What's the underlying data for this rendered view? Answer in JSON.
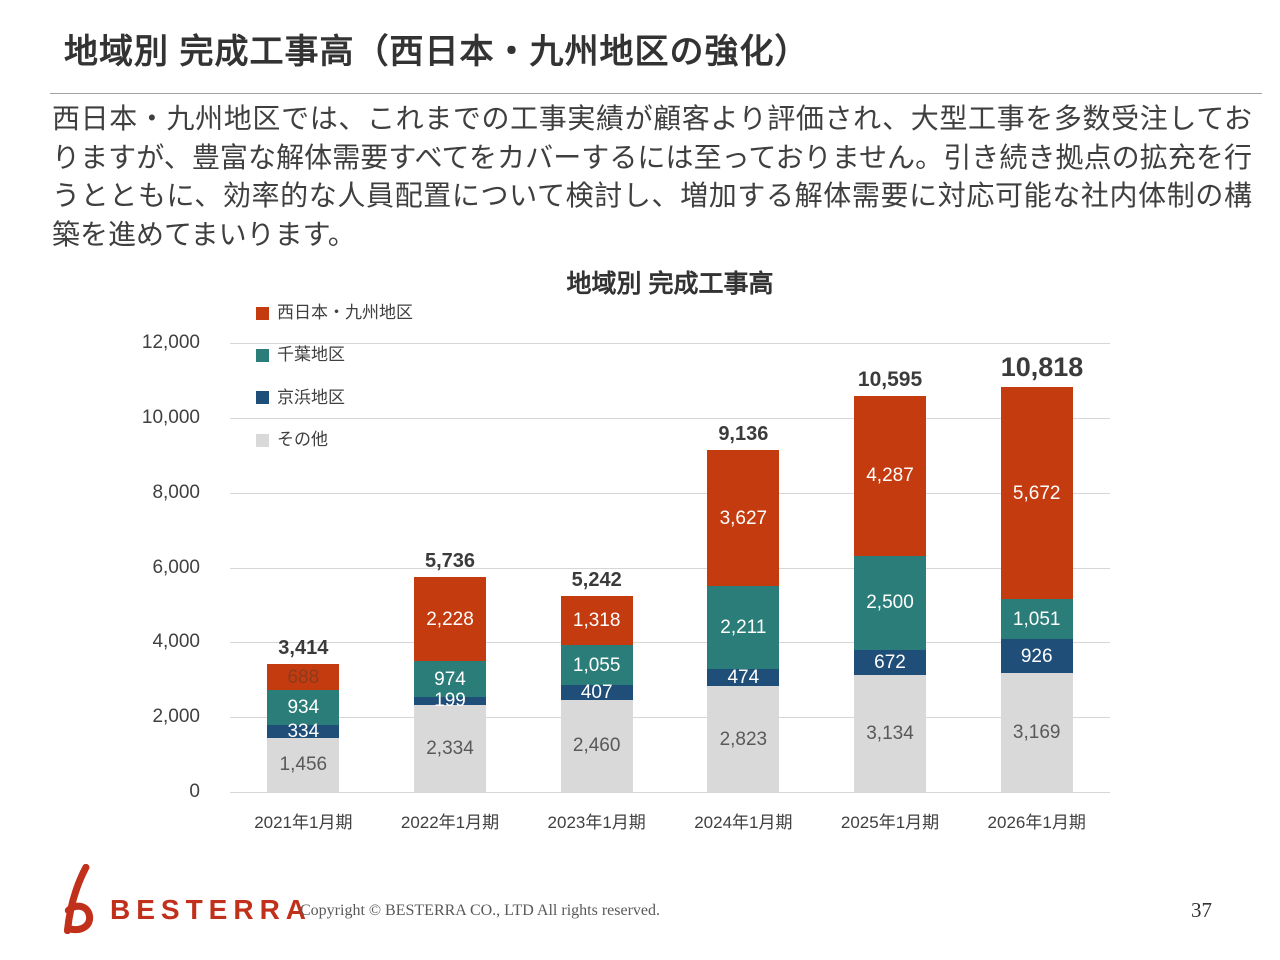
{
  "page": {
    "title": "地域別 完成工事高（西日本・九州地区の強化）",
    "body_text": "西日本・九州地区では、これまでの工事実績が顧客より評価され、大型工事を多数受注しておりますが、豊富な解体需要すべてをカバーするには至っておりません。引き続き拠点の拡充を行うとともに、効率的な人員配置について検討し、増加する解体需要に対応可能な社内体制の構築を進めてまいります。",
    "footer": {
      "logo_text": "BESTERRA",
      "logo_color": "#c0301b",
      "copyright": "Copyright © BESTERRA CO., LTD All rights reserved.",
      "page_number": "37"
    }
  },
  "chart_data": {
    "type": "bar",
    "stacked": true,
    "title": "地域別 完成工事高",
    "categories": [
      "2021年1月期",
      "2022年1月期",
      "2023年1月期",
      "2024年1月期",
      "2025年1月期",
      "2026年1月期"
    ],
    "series": [
      {
        "name": "その他",
        "color": "#d9d9d9",
        "label_color": "#595959",
        "values": [
          1456,
          2334,
          2460,
          2823,
          3134,
          3169
        ]
      },
      {
        "name": "京浜地区",
        "color": "#1f4e79",
        "label_color": "#ffffff",
        "values": [
          334,
          199,
          407,
          474,
          672,
          926
        ]
      },
      {
        "name": "千葉地区",
        "color": "#2a7d78",
        "label_color": "#ffffff",
        "values": [
          934,
          974,
          1055,
          2211,
          2500,
          1051
        ]
      },
      {
        "name": "西日本・九州地区",
        "color": "#c53b10",
        "label_color": "#ffffff",
        "values": [
          688,
          2228,
          1318,
          3627,
          4287,
          5672
        ],
        "label_color_overrides": {
          "0": "#8c3b1e"
        }
      }
    ],
    "totals": [
      3414,
      5736,
      5242,
      9136,
      10595,
      10818
    ],
    "ylim": [
      0,
      12000
    ],
    "ytick_step": 2000,
    "grid": true,
    "legend_position": "top-left",
    "legend_order": [
      "西日本・九州地区",
      "千葉地区",
      "京浜地区",
      "その他"
    ]
  }
}
